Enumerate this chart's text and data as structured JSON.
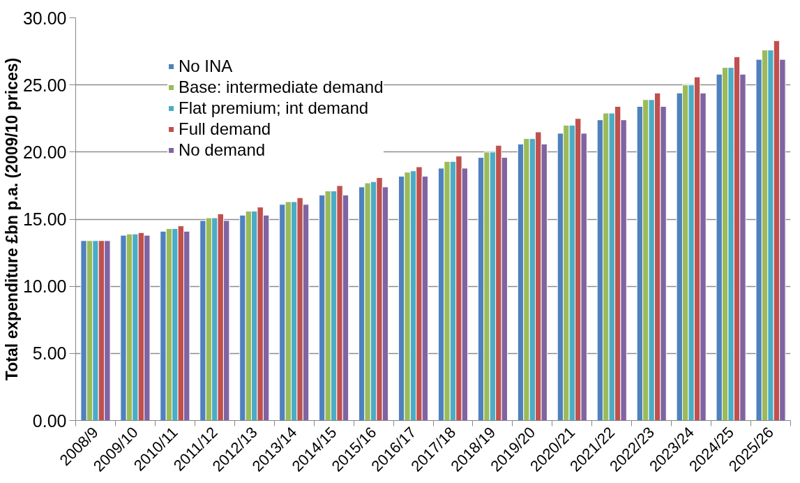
{
  "chart_data": {
    "type": "bar",
    "ylabel": "Total expenditure £bn p.a. (2009/10 prices)",
    "categories": [
      "2008/9",
      "2009/10",
      "2010/11",
      "2011/12",
      "2012/13",
      "2013/14",
      "2014/15",
      "2015/16",
      "2016/17",
      "2017/18",
      "2018/19",
      "2019/20",
      "2020/21",
      "2021/22",
      "2022/23",
      "2023/24",
      "2024/25",
      "2025/26"
    ],
    "series": [
      {
        "name": "No INA",
        "color": "#4f81bd",
        "values": [
          13.4,
          13.8,
          14.1,
          14.9,
          15.3,
          16.1,
          16.8,
          17.4,
          18.2,
          18.8,
          19.6,
          20.6,
          21.4,
          22.4,
          23.4,
          24.4,
          25.8,
          26.9
        ]
      },
      {
        "name": "Base: intermediate demand",
        "color": "#9bbb59",
        "values": [
          13.4,
          13.9,
          14.3,
          15.1,
          15.6,
          16.3,
          17.1,
          17.7,
          18.5,
          19.3,
          20.0,
          21.0,
          22.0,
          22.9,
          23.9,
          25.0,
          26.3,
          27.6
        ]
      },
      {
        "name": "Flat premium; int demand",
        "color": "#4bacc6",
        "values": [
          13.4,
          13.9,
          14.3,
          15.1,
          15.6,
          16.3,
          17.1,
          17.8,
          18.6,
          19.3,
          20.0,
          21.0,
          22.0,
          22.9,
          23.9,
          25.0,
          26.3,
          27.6
        ]
      },
      {
        "name": "Full demand",
        "color": "#c0504d",
        "values": [
          13.4,
          14.0,
          14.5,
          15.4,
          15.9,
          16.6,
          17.5,
          18.1,
          18.9,
          19.7,
          20.5,
          21.5,
          22.5,
          23.4,
          24.4,
          25.6,
          27.1,
          28.3
        ]
      },
      {
        "name": "No demand",
        "color": "#8064a2",
        "values": [
          13.4,
          13.8,
          14.1,
          14.9,
          15.3,
          16.1,
          16.8,
          17.4,
          18.2,
          18.8,
          19.6,
          20.6,
          21.4,
          22.4,
          23.4,
          24.4,
          25.8,
          26.9
        ]
      }
    ],
    "ylim": [
      0,
      30
    ],
    "yticks": [
      {
        "value": 0,
        "label": "0.00"
      },
      {
        "value": 5,
        "label": "5.00"
      },
      {
        "value": 10,
        "label": "10.00"
      },
      {
        "value": 15,
        "label": "15.00"
      },
      {
        "value": 20,
        "label": "20.00"
      },
      {
        "value": 25,
        "label": "25.00"
      },
      {
        "value": 30,
        "label": "30.00"
      }
    ],
    "grid": "y",
    "legend": "top left"
  }
}
